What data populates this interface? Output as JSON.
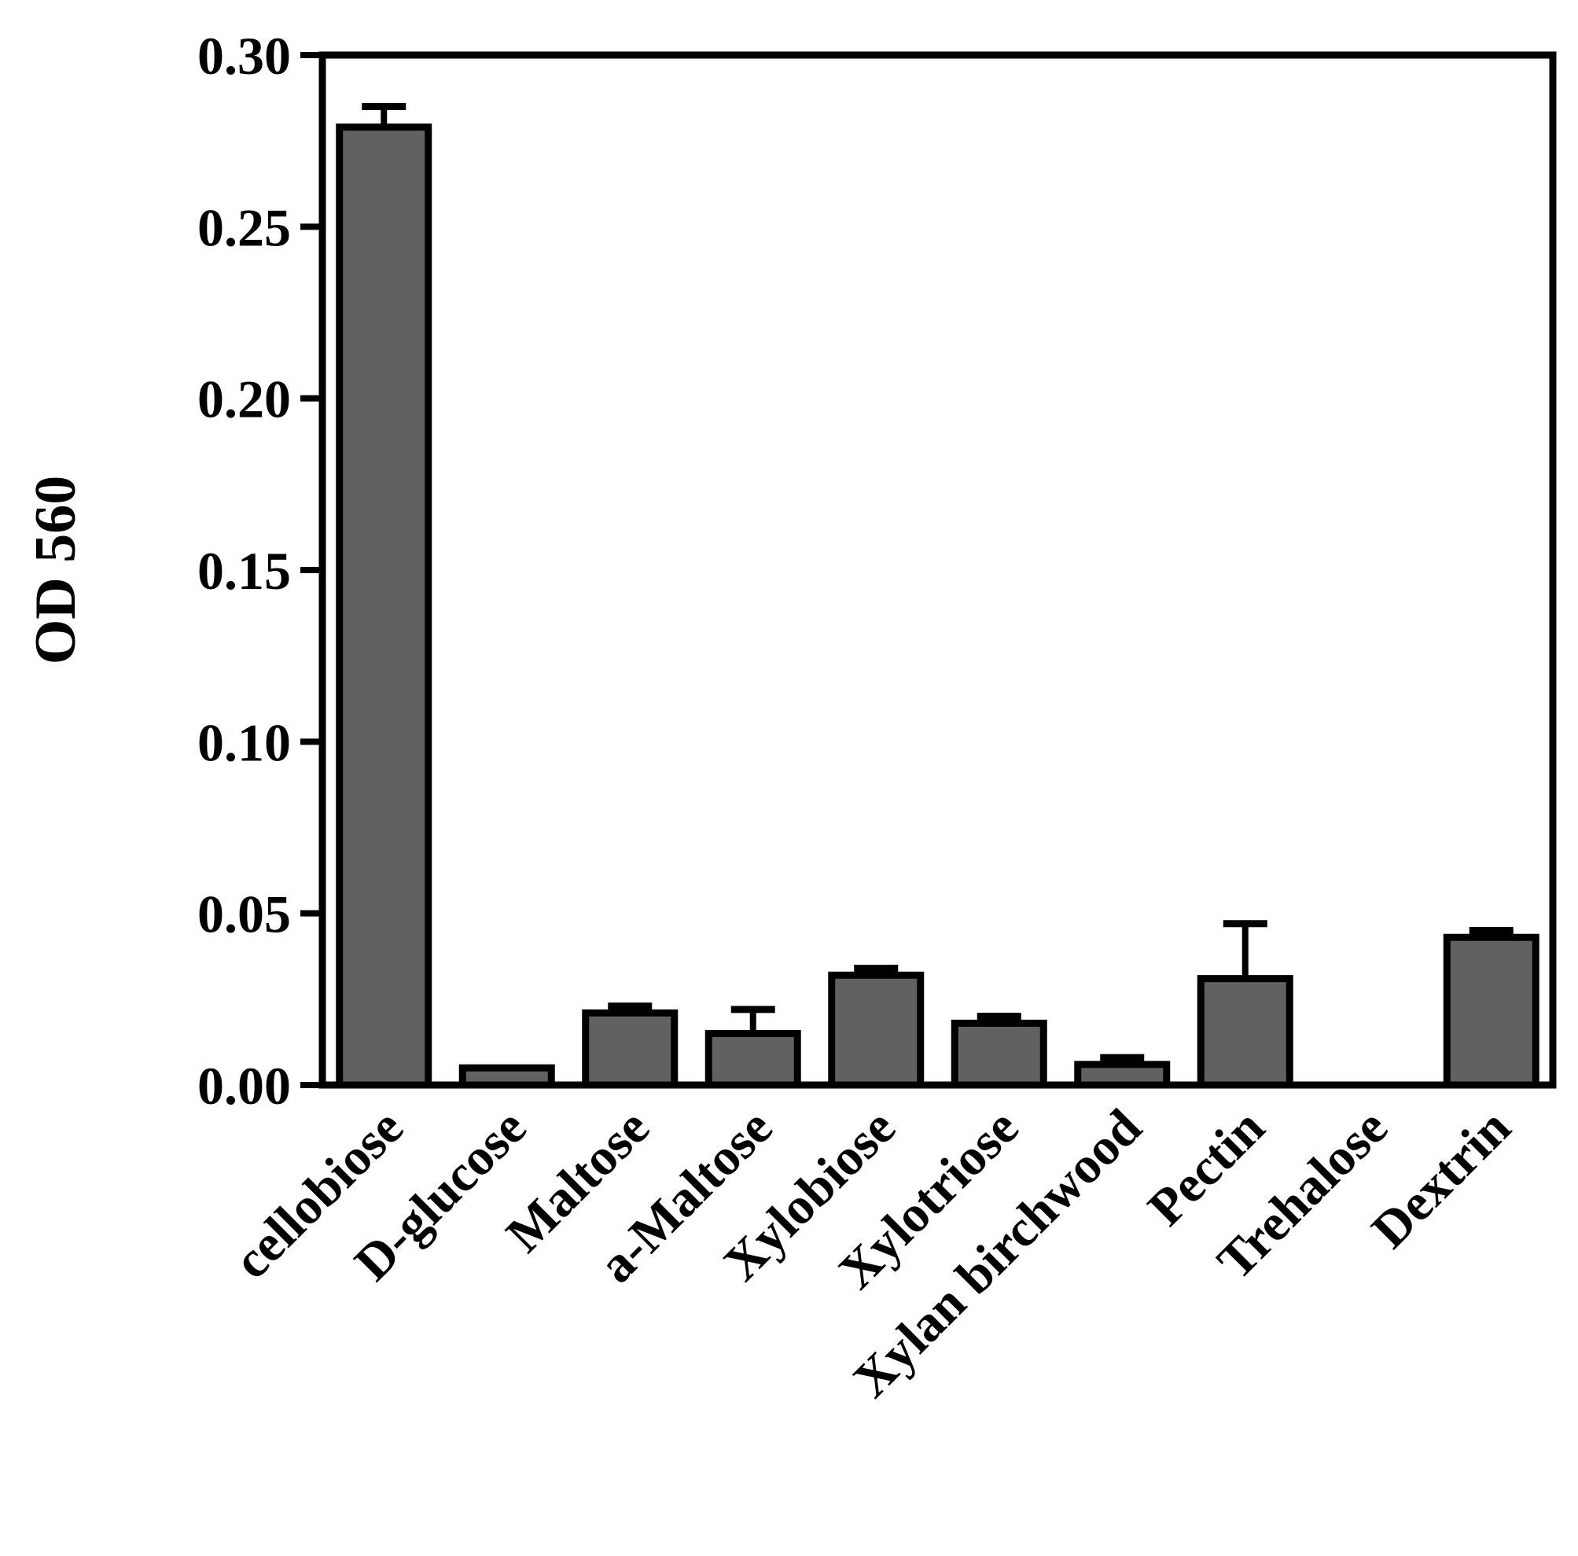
{
  "chart_data": {
    "type": "bar",
    "title": "",
    "xlabel": "",
    "ylabel": "OD 560",
    "ylim": [
      0,
      0.3
    ],
    "yticks": [
      "0.00",
      "0.05",
      "0.10",
      "0.15",
      "0.20",
      "0.25",
      "0.30"
    ],
    "grid": false,
    "legend": "none",
    "categories": [
      "cellobiose",
      "D-glucose",
      "Maltose",
      "a-Maltose",
      "Xylobiose",
      "Xylotriose",
      "Xylan birchwood",
      "Pectin",
      "Trehalose",
      "Dextrin"
    ],
    "values": [
      0.279,
      0.005,
      0.021,
      0.015,
      0.032,
      0.018,
      0.006,
      0.031,
      0.0,
      0.043
    ],
    "errors": [
      0.006,
      0.0,
      0.002,
      0.007,
      0.002,
      0.002,
      0.002,
      0.016,
      0.0,
      0.002
    ],
    "bar_color": "#616161",
    "edge_color": "#000000"
  }
}
